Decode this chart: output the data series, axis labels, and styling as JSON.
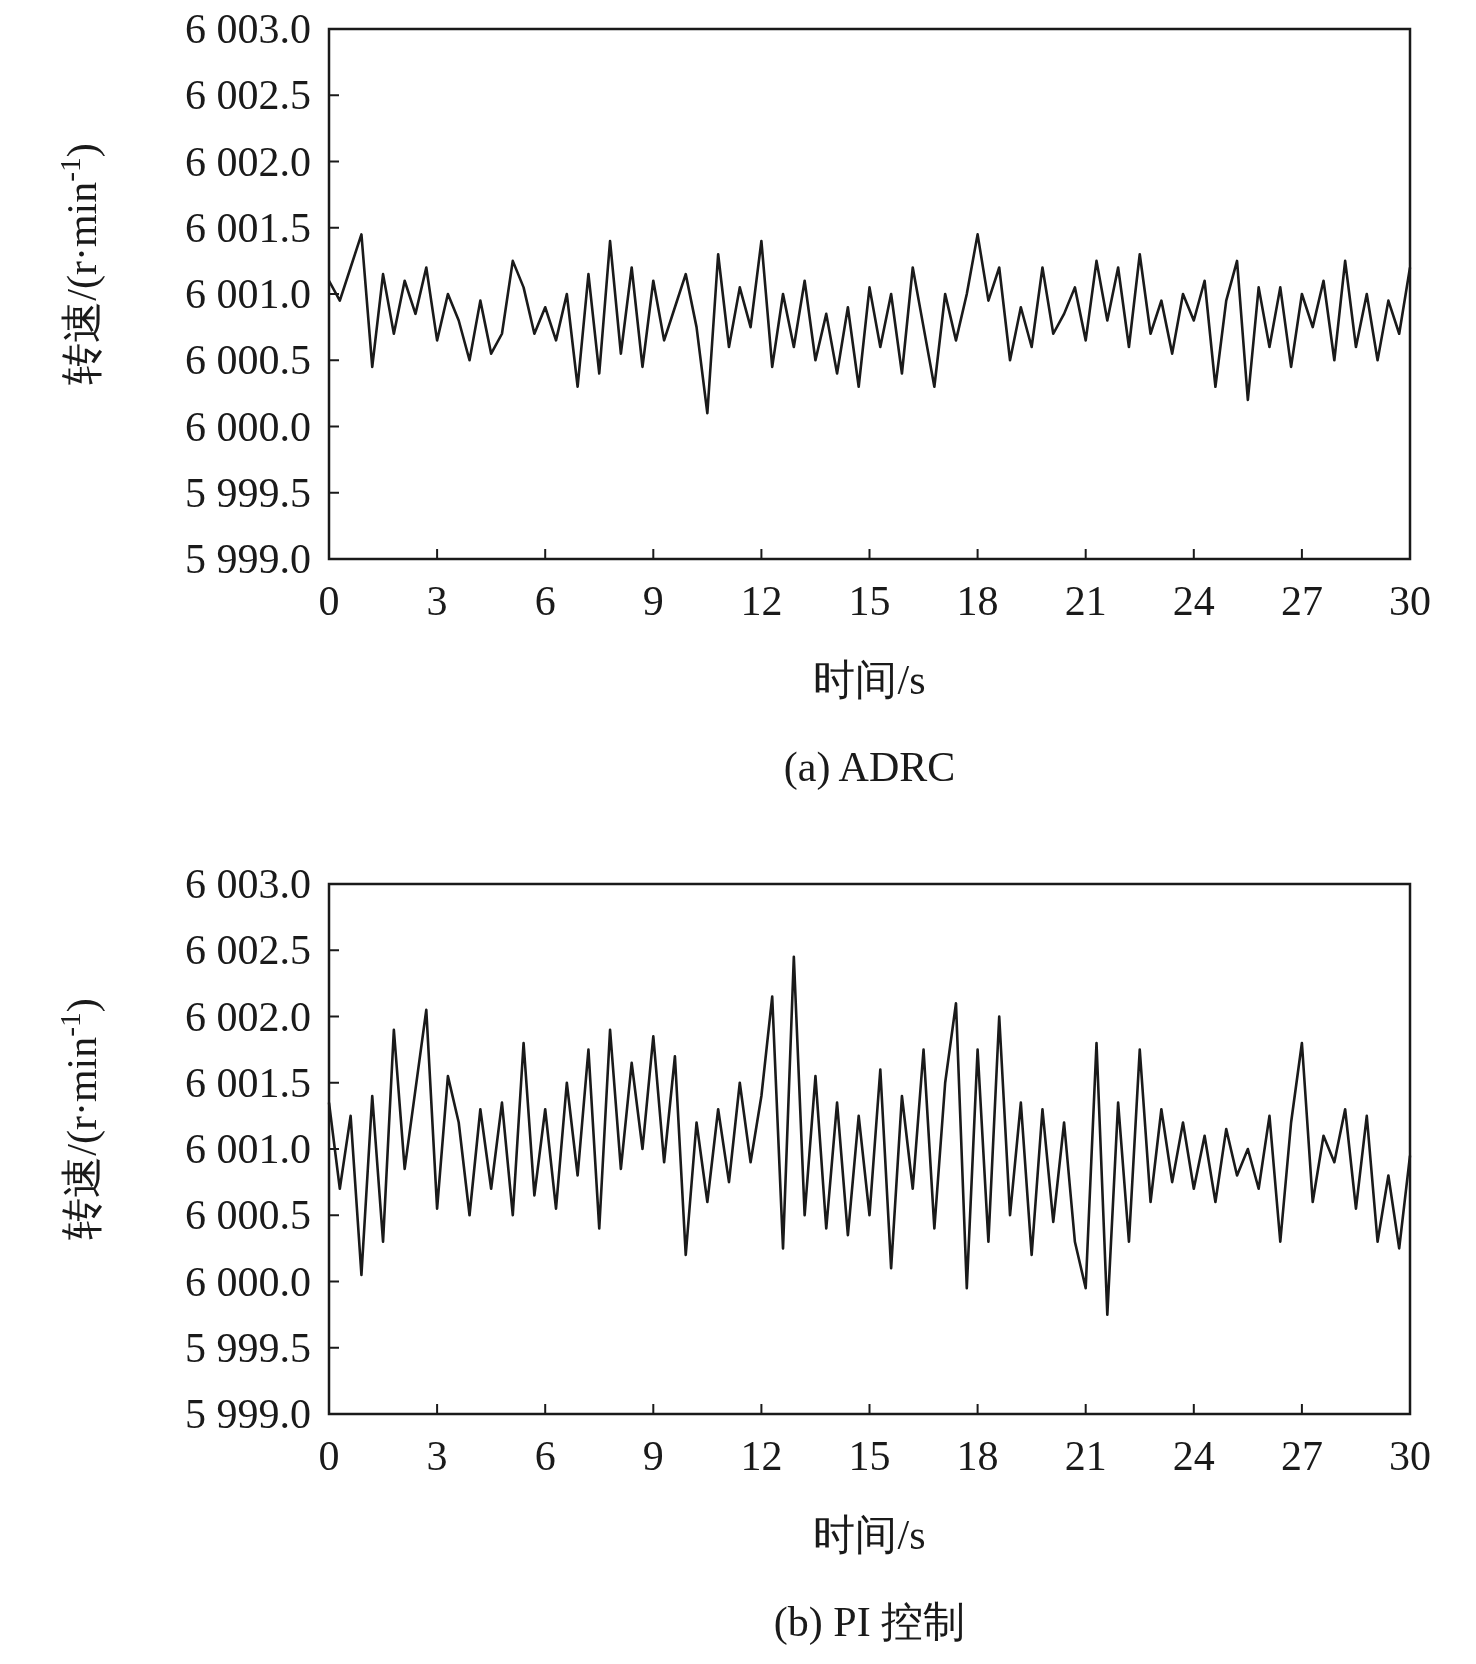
{
  "chart_data": [
    {
      "type": "line",
      "title": "(a) ADRC",
      "xlabel": "时间/s",
      "ylabel": "转速/(r·min$^{-1}$)",
      "color": "#1a1a1a",
      "xlim": [
        0,
        30
      ],
      "xticks": [
        0,
        3,
        6,
        9,
        12,
        15,
        18,
        21,
        24,
        27,
        30
      ],
      "ylim": [
        5999,
        6003
      ],
      "yticks": [
        {
          "value": 5999,
          "label": "5 999.0"
        },
        {
          "value": 5999.5,
          "label": "5 999.5"
        },
        {
          "value": 6000,
          "label": "6 000.0"
        },
        {
          "value": 6000.5,
          "label": "6 000.5"
        },
        {
          "value": 6001,
          "label": "6 001.0"
        },
        {
          "value": 6001.5,
          "label": "6 001.5"
        },
        {
          "value": 6002,
          "label": "6 002.0"
        },
        {
          "value": 6002.5,
          "label": "6 002.5"
        },
        {
          "value": 6003,
          "label": "6 003.0"
        }
      ],
      "x": [
        0,
        0.3,
        0.6,
        0.9,
        1.2,
        1.5,
        1.8,
        2.1,
        2.4,
        2.7,
        3,
        3.3,
        3.6,
        3.9,
        4.2,
        4.5,
        4.8,
        5.1,
        5.4,
        5.7,
        6,
        6.3,
        6.6,
        6.9,
        7.2,
        7.5,
        7.8,
        8.1,
        8.4,
        8.7,
        9,
        9.3,
        9.6,
        9.9,
        10.2,
        10.5,
        10.8,
        11.1,
        11.4,
        11.7,
        12,
        12.3,
        12.6,
        12.9,
        13.2,
        13.5,
        13.8,
        14.1,
        14.4,
        14.7,
        15,
        15.3,
        15.6,
        15.9,
        16.2,
        16.5,
        16.8,
        17.1,
        17.4,
        17.7,
        18,
        18.3,
        18.6,
        18.9,
        19.2,
        19.5,
        19.8,
        20.1,
        20.4,
        20.7,
        21,
        21.3,
        21.6,
        21.9,
        22.2,
        22.5,
        22.8,
        23.1,
        23.4,
        23.7,
        24,
        24.3,
        24.6,
        24.9,
        25.2,
        25.5,
        25.8,
        26.1,
        26.4,
        26.7,
        27,
        27.3,
        27.6,
        27.9,
        28.2,
        28.5,
        28.8,
        29.1,
        29.4,
        29.7,
        30
      ],
      "values": [
        6001.1,
        6000.95,
        6001.2,
        6001.45,
        6000.45,
        6001.15,
        6000.7,
        6001.1,
        6000.85,
        6001.2,
        6000.65,
        6001.0,
        6000.8,
        6000.5,
        6000.95,
        6000.55,
        6000.7,
        6001.25,
        6001.05,
        6000.7,
        6000.9,
        6000.65,
        6001.0,
        6000.3,
        6001.15,
        6000.4,
        6001.4,
        6000.55,
        6001.2,
        6000.45,
        6001.1,
        6000.65,
        6000.9,
        6001.15,
        6000.75,
        6000.1,
        6001.3,
        6000.6,
        6001.05,
        6000.75,
        6001.4,
        6000.45,
        6001.0,
        6000.6,
        6001.1,
        6000.5,
        6000.85,
        6000.4,
        6000.9,
        6000.3,
        6001.05,
        6000.6,
        6001.0,
        6000.4,
        6001.2,
        6000.75,
        6000.3,
        6001.0,
        6000.65,
        6001.0,
        6001.45,
        6000.95,
        6001.2,
        6000.5,
        6000.9,
        6000.6,
        6001.2,
        6000.7,
        6000.85,
        6001.05,
        6000.65,
        6001.25,
        6000.8,
        6001.2,
        6000.6,
        6001.3,
        6000.7,
        6000.95,
        6000.55,
        6001.0,
        6000.8,
        6001.1,
        6000.3,
        6000.95,
        6001.25,
        6000.2,
        6001.05,
        6000.6,
        6001.05,
        6000.45,
        6001.0,
        6000.75,
        6001.1,
        6000.5,
        6001.25,
        6000.6,
        6001.0,
        6000.5,
        6000.95,
        6000.7,
        6001.2
      ]
    },
    {
      "type": "line",
      "title": "(b) PI 控制",
      "xlabel": "时间/s",
      "ylabel": "转速/(r·min$^{-1}$)",
      "color": "#1a1a1a",
      "xlim": [
        0,
        30
      ],
      "xticks": [
        0,
        3,
        6,
        9,
        12,
        15,
        18,
        21,
        24,
        27,
        30
      ],
      "ylim": [
        5999,
        6003
      ],
      "yticks": [
        {
          "value": 5999,
          "label": "5 999.0"
        },
        {
          "value": 5999.5,
          "label": "5 999.5"
        },
        {
          "value": 6000,
          "label": "6 000.0"
        },
        {
          "value": 6000.5,
          "label": "6 000.5"
        },
        {
          "value": 6001,
          "label": "6 001.0"
        },
        {
          "value": 6001.5,
          "label": "6 001.5"
        },
        {
          "value": 6002,
          "label": "6 002.0"
        },
        {
          "value": 6002.5,
          "label": "6 002.5"
        },
        {
          "value": 6003,
          "label": "6 003.0"
        }
      ],
      "x": [
        0,
        0.3,
        0.6,
        0.9,
        1.2,
        1.5,
        1.8,
        2.1,
        2.4,
        2.7,
        3,
        3.3,
        3.6,
        3.9,
        4.2,
        4.5,
        4.8,
        5.1,
        5.4,
        5.7,
        6,
        6.3,
        6.6,
        6.9,
        7.2,
        7.5,
        7.8,
        8.1,
        8.4,
        8.7,
        9,
        9.3,
        9.6,
        9.9,
        10.2,
        10.5,
        10.8,
        11.1,
        11.4,
        11.7,
        12,
        12.3,
        12.6,
        12.9,
        13.2,
        13.5,
        13.8,
        14.1,
        14.4,
        14.7,
        15,
        15.3,
        15.6,
        15.9,
        16.2,
        16.5,
        16.8,
        17.1,
        17.4,
        17.7,
        18,
        18.3,
        18.6,
        18.9,
        19.2,
        19.5,
        19.8,
        20.1,
        20.4,
        20.7,
        21,
        21.3,
        21.6,
        21.9,
        22.2,
        22.5,
        22.8,
        23.1,
        23.4,
        23.7,
        24,
        24.3,
        24.6,
        24.9,
        25.2,
        25.5,
        25.8,
        26.1,
        26.4,
        26.7,
        27,
        27.3,
        27.6,
        27.9,
        28.2,
        28.5,
        28.8,
        29.1,
        29.4,
        29.7,
        30
      ],
      "values": [
        6001.35,
        6000.7,
        6001.25,
        6000.05,
        6001.4,
        6000.3,
        6001.9,
        6000.85,
        6001.45,
        6002.05,
        6000.55,
        6001.55,
        6001.2,
        6000.5,
        6001.3,
        6000.7,
        6001.35,
        6000.5,
        6001.8,
        6000.65,
        6001.3,
        6000.55,
        6001.5,
        6000.8,
        6001.75,
        6000.4,
        6001.9,
        6000.85,
        6001.65,
        6001.0,
        6001.85,
        6000.9,
        6001.7,
        6000.2,
        6001.2,
        6000.6,
        6001.3,
        6000.75,
        6001.5,
        6000.9,
        6001.4,
        6002.15,
        6000.25,
        6002.45,
        6000.5,
        6001.55,
        6000.4,
        6001.35,
        6000.35,
        6001.25,
        6000.5,
        6001.6,
        6000.1,
        6001.4,
        6000.7,
        6001.75,
        6000.4,
        6001.5,
        6002.1,
        5999.95,
        6001.75,
        6000.3,
        6002.0,
        6000.5,
        6001.35,
        6000.2,
        6001.3,
        6000.45,
        6001.2,
        6000.3,
        5999.95,
        6001.8,
        5999.75,
        6001.35,
        6000.3,
        6001.75,
        6000.6,
        6001.3,
        6000.75,
        6001.2,
        6000.7,
        6001.1,
        6000.6,
        6001.15,
        6000.8,
        6001.0,
        6000.7,
        6001.25,
        6000.3,
        6001.2,
        6001.8,
        6000.6,
        6001.1,
        6000.9,
        6001.3,
        6000.55,
        6001.25,
        6000.3,
        6000.8,
        6000.25,
        6000.95
      ]
    }
  ]
}
